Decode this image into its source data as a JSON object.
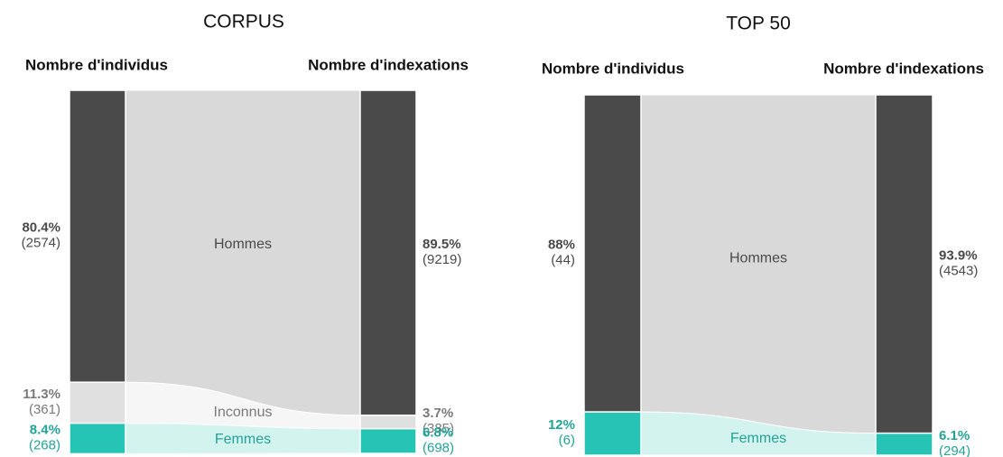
{
  "chart_data": [
    {
      "type": "sankey",
      "title": "CORPUS",
      "ylim": [
        0,
        100
      ],
      "left_label": "Nombre d'individus",
      "right_label": "Nombre d'indexations",
      "series": [
        {
          "name": "Hommes",
          "color": "#4a4a4a",
          "flow_color": "#d9d9d9",
          "text_color": "#4a4a4a",
          "values": [
            80.4,
            89.5
          ],
          "value_labels": [
            "80.4%",
            "89.5%"
          ],
          "counts": [
            2574,
            9219
          ],
          "count_labels": [
            "(2574)",
            "(9219)"
          ]
        },
        {
          "name": "Inconnus",
          "color": "#e0e0e0",
          "flow_color": "#f6f6f6",
          "text_color": "#7a7a7a",
          "values": [
            11.3,
            3.7
          ],
          "value_labels": [
            "11.3%",
            "3.7%"
          ],
          "counts": [
            361,
            385
          ],
          "count_labels": [
            "(361)",
            "(385)"
          ]
        },
        {
          "name": "Femmes",
          "color": "#26c4b4",
          "flow_color": "#d3f3ef",
          "text_color": "#22a396",
          "values": [
            8.4,
            6.8
          ],
          "value_labels": [
            "8.4%",
            "6.8%"
          ],
          "counts": [
            268,
            698
          ],
          "count_labels": [
            "(268)",
            "(698)"
          ]
        }
      ]
    },
    {
      "type": "sankey",
      "title": "TOP 50",
      "ylim": [
        0,
        100
      ],
      "left_label": "Nombre d'individus",
      "right_label": "Nombre d'indexations",
      "series": [
        {
          "name": "Hommes",
          "color": "#4a4a4a",
          "flow_color": "#d9d9d9",
          "text_color": "#4a4a4a",
          "values": [
            88,
            93.9
          ],
          "value_labels": [
            "88%",
            "93.9%"
          ],
          "counts": [
            44,
            4543
          ],
          "count_labels": [
            "(44)",
            "(4543)"
          ]
        },
        {
          "name": "Femmes",
          "color": "#26c4b4",
          "flow_color": "#d3f3ef",
          "text_color": "#22a396",
          "values": [
            12,
            6.1
          ],
          "value_labels": [
            "12%",
            "6.1%"
          ],
          "counts": [
            6,
            294
          ],
          "count_labels": [
            "(6)",
            "(294)"
          ]
        }
      ]
    }
  ]
}
